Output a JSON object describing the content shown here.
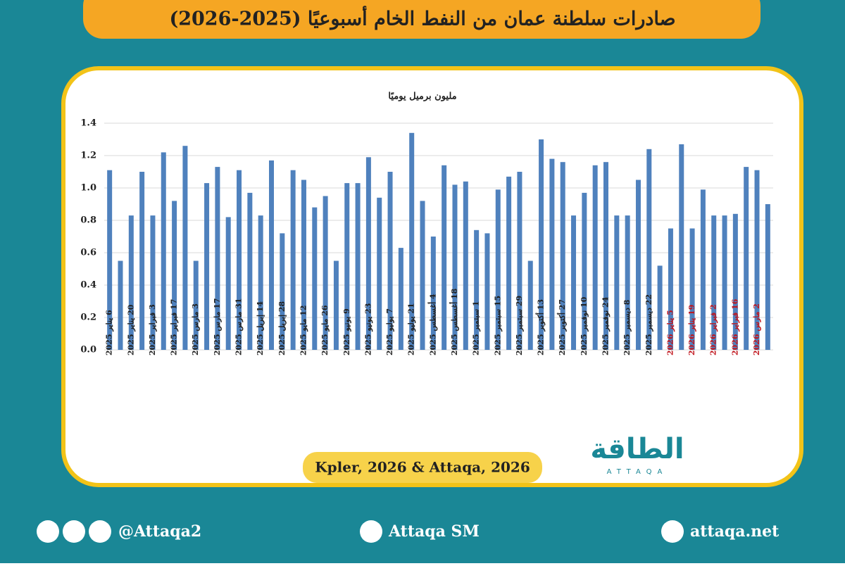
{
  "header": {
    "title": "صادرات سلطنة عمان من النفط الخام أسبوعيًا (2025-2026)"
  },
  "chart_data": {
    "type": "bar",
    "y_label": "مليون برميل يوميًا",
    "color": "#4f81bd",
    "grid": true,
    "categories": [
      "6 يناير 2025",
      null,
      "20 يناير 2025",
      null,
      "3 فبراير 2025",
      null,
      "17 فبراير 2025",
      null,
      "3 مارس 2025",
      null,
      "17 مارس 2025",
      null,
      "31 مارس 2025",
      null,
      "14 إبريل 2025",
      null,
      "28 إبريل 2025",
      null,
      "12 مايو 2025",
      null,
      "26 مايو 2025",
      null,
      "9 يونيو 2025",
      null,
      "23 يونيو 2025",
      null,
      "7 يوليو 2025",
      null,
      "21 يوليو 2025",
      null,
      "4 أغسطس 2025",
      null,
      "18 أغسطس 2025",
      null,
      "1 سبتمبر 2025",
      null,
      "15 سبتمبر 2025",
      null,
      "29 سبتمبر 2025",
      null,
      "13 أكتوبر 2025",
      null,
      "27 أكتوبر 2025",
      null,
      "10 نوفمبر 2025",
      null,
      "24 نوفمبر 2025",
      null,
      "8 ديسمبر 2025",
      null,
      "22 ديسمبر 2025",
      null,
      "5 يناير 2026",
      null,
      "19 يناير 2026",
      null,
      "2 فبراير 2026",
      null,
      "16 فبراير 2026",
      null,
      "2 مارس 2026",
      null
    ],
    "x_label_colors": [
      "#222",
      "#222",
      "#222",
      "#222",
      "#222",
      "#222",
      "#222",
      "#222",
      "#222",
      "#222",
      "#222",
      "#222",
      "#222",
      "#222",
      "#222",
      "#222",
      "#222",
      "#222",
      "#222",
      "#222",
      "#222",
      "#222",
      "#222",
      "#222",
      "#222",
      "#222",
      "#222",
      "#222",
      "#222",
      "#222",
      "#222",
      "#222",
      "#222",
      "#222",
      "#222",
      "#222",
      "#222",
      "#222",
      "#222",
      "#222",
      "#222",
      "#222",
      "#222",
      "#222",
      "#222",
      "#222",
      "#222",
      "#222",
      "#222",
      "#222",
      "#222",
      "#222",
      "#c0141c",
      "#c0141c",
      "#c0141c",
      "#c0141c",
      "#c0141c",
      "#c0141c",
      "#c0141c",
      "#c0141c",
      "#c0141c",
      "#c0141c"
    ],
    "values": [
      1.11,
      0.55,
      0.83,
      1.1,
      0.83,
      1.22,
      0.92,
      1.26,
      0.55,
      1.03,
      1.13,
      0.82,
      1.11,
      0.97,
      0.83,
      1.17,
      0.72,
      1.11,
      1.05,
      0.88,
      0.95,
      0.55,
      1.03,
      1.03,
      1.19,
      0.94,
      1.1,
      0.63,
      1.34,
      0.92,
      0.7,
      1.14,
      1.02,
      1.04,
      0.74,
      0.72,
      0.99,
      1.07,
      1.1,
      0.55,
      1.3,
      1.18,
      1.16,
      0.83,
      0.97,
      1.14,
      1.16,
      0.83,
      0.83,
      1.05,
      1.24,
      0.52,
      0.75,
      1.27,
      0.75,
      0.99,
      0.83,
      0.83,
      0.84,
      1.13,
      1.11,
      0.9
    ],
    "ylim": [
      0,
      1.4
    ],
    "yticks": [
      {
        "value": 0,
        "label": "0.0"
      },
      0.2,
      0.4,
      0.6,
      0.8,
      {
        "value": 1,
        "label": "1.0"
      },
      1.2,
      1.4
    ],
    "source": "Kpler, 2026 & Attaqa, 2026"
  },
  "logo": {
    "name": "الطاقة",
    "latin": "ATTAQA"
  },
  "footer": {
    "social": "@Attaqa2",
    "youtube": "Attaqa SM",
    "website": "attaqa.net"
  }
}
